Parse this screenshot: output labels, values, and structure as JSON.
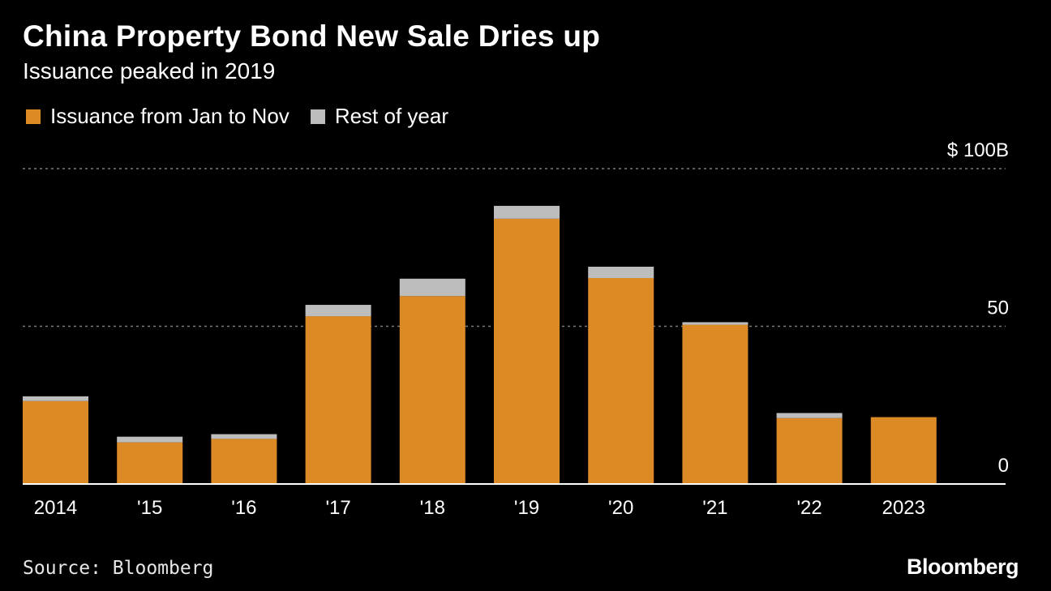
{
  "header": {
    "title": "China Property Bond New Sale Dries up",
    "subtitle": "Issuance peaked in 2019"
  },
  "legend": {
    "items": [
      {
        "label": "Issuance from Jan to Nov",
        "color": "#dc8a26"
      },
      {
        "label": "Rest of year",
        "color": "#bdbdbd"
      }
    ]
  },
  "footer": {
    "source": "Source: Bloomberg",
    "brand": "Bloomberg"
  },
  "colors": {
    "background": "#000000",
    "primary": "#dc8a26",
    "secondary": "#bdbdbd",
    "grid": "#7a7a7a",
    "axis": "#ffffff"
  },
  "chart_data": {
    "type": "bar",
    "stacked": true,
    "categories": [
      "2014",
      "'15",
      "'16",
      "'17",
      "'18",
      "'19",
      "'20",
      "'21",
      "'22",
      "2023"
    ],
    "series": [
      {
        "name": "Issuance from Jan to Nov",
        "values": [
          26.3,
          13.2,
          14.3,
          53.2,
          59.6,
          84.1,
          65.3,
          50.5,
          20.9,
          21.2
        ]
      },
      {
        "name": "Rest of year",
        "values": [
          1.5,
          1.8,
          1.5,
          3.6,
          5.5,
          4.1,
          3.6,
          0.8,
          1.6,
          0
        ]
      }
    ],
    "ylim": [
      0,
      100
    ],
    "yticks": [
      {
        "value": 100,
        "label": "$ 100B"
      },
      {
        "value": 50,
        "label": "50"
      },
      {
        "value": 0,
        "label": "0"
      }
    ],
    "grid": true,
    "xlabel": "",
    "ylabel": ""
  }
}
